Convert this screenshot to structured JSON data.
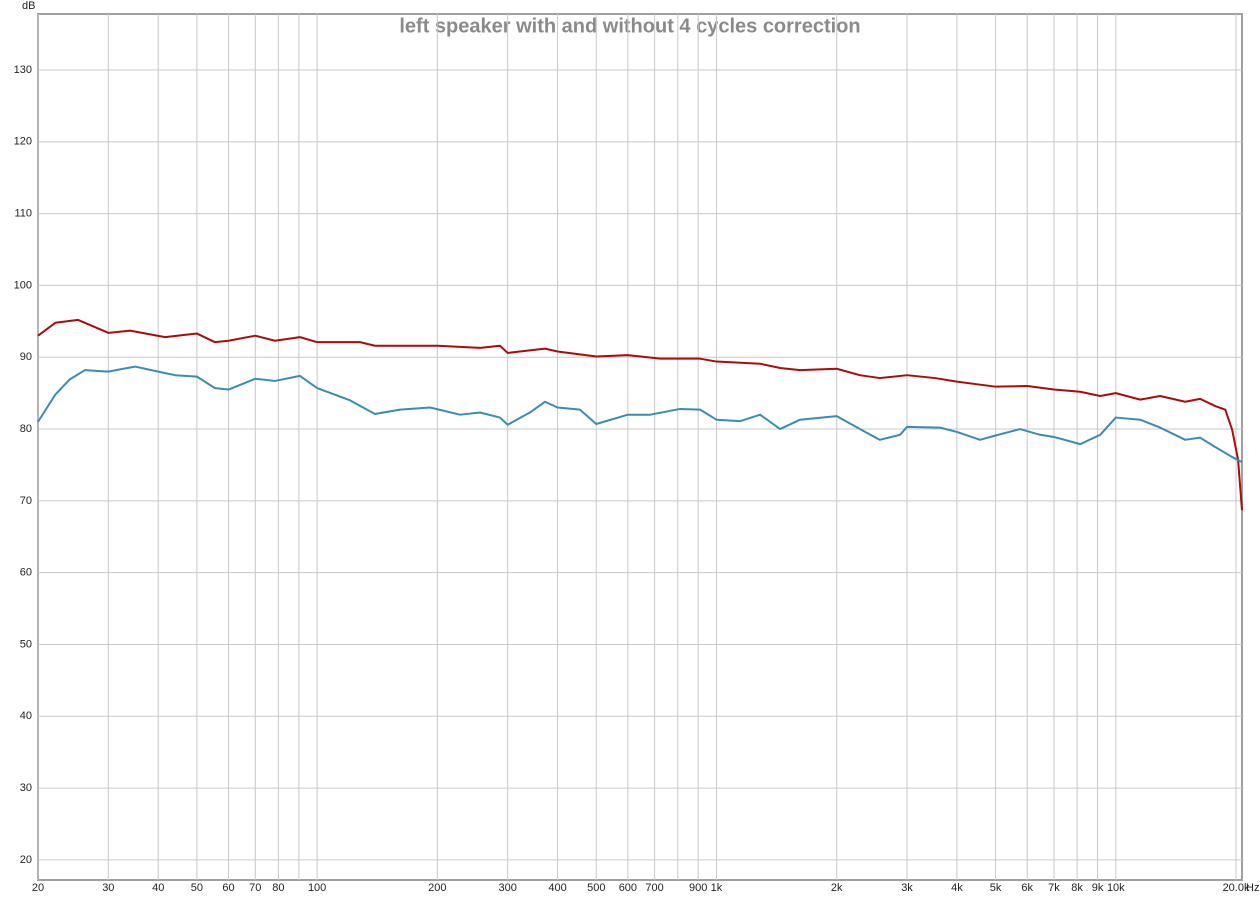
{
  "chart_data": {
    "type": "line",
    "title": "left speaker with and without 4 cycles correction",
    "y_label": "dB",
    "x_label": "Hz",
    "x_scale": "log",
    "grid": true,
    "xlim": [
      20,
      20700
    ],
    "ylim": [
      17.2,
      137.8
    ],
    "yticks": [
      20,
      30,
      40,
      50,
      60,
      70,
      80,
      90,
      100,
      110,
      120,
      130
    ],
    "xticks": [
      20,
      30,
      40,
      50,
      60,
      70,
      80,
      {
        "value": 90,
        "label": null
      },
      100,
      200,
      300,
      400,
      500,
      600,
      700,
      {
        "value": 800,
        "label": null
      },
      900,
      {
        "value": 1000,
        "label": "1k"
      },
      {
        "value": 2000,
        "label": "2k"
      },
      {
        "value": 3000,
        "label": "3k"
      },
      {
        "value": 4000,
        "label": "4k"
      },
      {
        "value": 5000,
        "label": "5k"
      },
      {
        "value": 6000,
        "label": "6k"
      },
      {
        "value": 7000,
        "label": "7k"
      },
      {
        "value": 8000,
        "label": "8k"
      },
      {
        "value": 9000,
        "label": "9k"
      },
      {
        "value": 10000,
        "label": "10k"
      },
      {
        "value": 20000,
        "label": "20.0k"
      }
    ],
    "series": [
      {
        "color": "#a80c0c",
        "x": [
          20,
          22.1,
          25.2,
          30,
          34,
          41.6,
          50,
          55.5,
          60,
          70,
          78.4,
          90.6,
          100,
          128,
          139.6,
          200,
          256,
          287,
          300,
          372,
          400,
          500,
          600,
          722,
          910,
          1000,
          1286,
          1443,
          1619,
          2000,
          2286,
          2565,
          3000,
          3525,
          4000,
          5000,
          6000,
          7000,
          8144,
          9138,
          10000,
          11510,
          12910,
          14920,
          16260,
          17740,
          18800,
          19560,
          20240,
          20700
        ],
        "values": [
          93,
          94.8,
          95.2,
          93.4,
          93.7,
          92.8,
          93.3,
          92.1,
          92.3,
          93,
          92.3,
          92.8,
          92.1,
          92.1,
          91.6,
          91.6,
          91.3,
          91.6,
          90.6,
          91.2,
          90.8,
          90.1,
          90.3,
          89.8,
          89.8,
          89.4,
          89.1,
          88.5,
          88.2,
          88.4,
          87.5,
          87.1,
          87.5,
          87.1,
          86.6,
          85.9,
          86,
          85.5,
          85.2,
          84.6,
          85,
          84.1,
          84.6,
          83.8,
          84.2,
          83.2,
          82.7,
          79.9,
          75.7,
          68.7
        ]
      },
      {
        "color": "#3a8cb0",
        "x": [
          20,
          22.1,
          24,
          26.2,
          30,
          35,
          40,
          44.1,
          50,
          55.5,
          60,
          70,
          78.4,
          90.6,
          100,
          120.9,
          139.6,
          161.4,
          191.7,
          228,
          256,
          287,
          300,
          341,
          372,
          400,
          455,
          500,
          600,
          682,
          811,
          910,
          1000,
          1146,
          1286,
          1443,
          1619,
          2000,
          2286,
          2565,
          2882,
          3000,
          3630,
          4000,
          4571,
          5000,
          5757,
          6459,
          7000,
          8144,
          9138,
          10000,
          11510,
          12910,
          14920,
          16260,
          17740,
          19560,
          20700
        ],
        "values": [
          81,
          84.8,
          86.9,
          88.2,
          88,
          88.7,
          88,
          87.5,
          87.3,
          85.7,
          85.5,
          87,
          86.7,
          87.4,
          85.7,
          84,
          82.1,
          82.7,
          83,
          82,
          82.3,
          81.6,
          80.6,
          82.3,
          83.8,
          83,
          82.7,
          80.7,
          82,
          82,
          82.8,
          82.7,
          81.3,
          81.1,
          82,
          80,
          81.3,
          81.8,
          80,
          78.5,
          79.2,
          80.3,
          80.2,
          79.6,
          78.5,
          79.1,
          80,
          79.2,
          78.9,
          77.9,
          79.2,
          81.6,
          81.3,
          80.2,
          78.5,
          78.8,
          77.5,
          76.1,
          75.4
        ]
      }
    ]
  }
}
